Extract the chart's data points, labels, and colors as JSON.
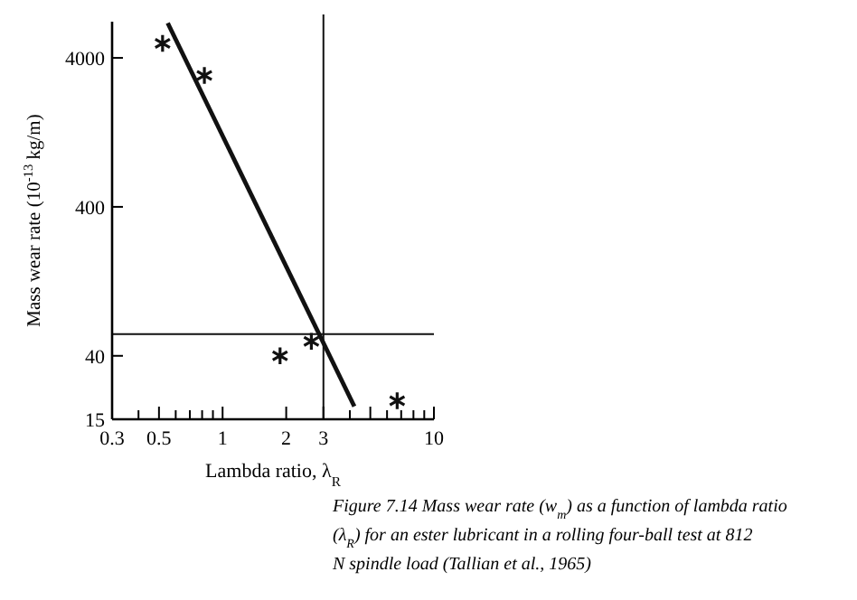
{
  "chart_data": {
    "type": "scatter",
    "xlabel": "Lambda ratio, λ$_{R}$",
    "ylabel": "Mass wear rate (10$^{-13}$ kg/m)",
    "log": "xy",
    "grid": false,
    "marker": "cross",
    "xlim": [
      0.3,
      10
    ],
    "ylim": [
      15,
      7000
    ],
    "xticks": [
      0.3,
      {
        "value": 0.4,
        "label": null
      },
      0.5,
      {
        "value": 0.6,
        "label": null
      },
      {
        "value": 0.7,
        "label": null
      },
      {
        "value": 0.8,
        "label": null
      },
      {
        "value": 0.9,
        "label": null
      },
      1,
      2,
      3,
      {
        "value": 4,
        "label": null
      },
      {
        "value": 5,
        "label": null
      },
      {
        "value": 6,
        "label": null
      },
      {
        "value": 7,
        "label": null
      },
      {
        "value": 8,
        "label": null
      },
      {
        "value": 9,
        "label": null
      },
      10
    ],
    "yticks": [
      15,
      40,
      400,
      4000
    ],
    "series": [
      {
        "color": "#111111",
        "x": [
          0.52,
          0.82,
          1.87,
          2.63,
          6.7
        ],
        "values": [
          5000,
          3050,
          40,
          50,
          20
        ]
      },
      {
        "type": "line",
        "color": "#111111",
        "x": [
          0.55,
          4.2
        ],
        "values": [
          6850,
          18.3
        ],
        "marker": "none",
        "line_style": "solid"
      }
    ],
    "ref_lines": [
      {
        "axis": "x",
        "value": 3,
        "color": "#111111"
      },
      {
        "axis": "y",
        "value": 56,
        "color": "#111111"
      }
    ],
    "annotations": [
      "Figure 7.14 Mass wear rate (w$_{m}$) as a function of lambda ratio (λ$_{R}$) for an ester lubricant in a rolling four-ball test at 812 N spindle load (Tallian et al., 1965)"
    ]
  }
}
